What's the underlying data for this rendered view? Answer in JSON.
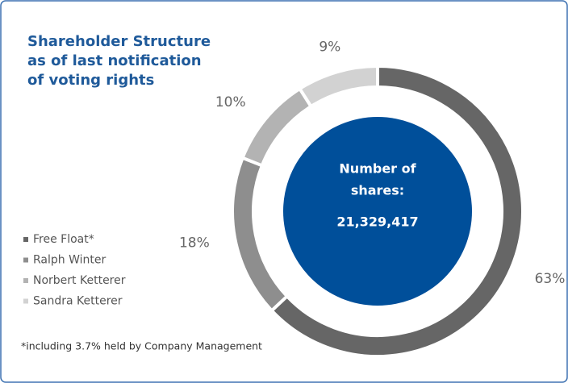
{
  "chart_data": {
    "type": "donut",
    "title": [
      "Shareholder Structure",
      "as of last notification",
      "of voting rights"
    ],
    "categories": [
      "Free Float*",
      "Ralph Winter",
      "Norbert Ketterer",
      "Sandra Ketterer"
    ],
    "values": [
      63,
      18,
      10,
      9
    ],
    "value_labels": [
      "63%",
      "18%",
      "10%",
      "9%"
    ],
    "colors": [
      "#666666",
      "#8e8e8e",
      "#b3b3b3",
      "#d2d2d2"
    ],
    "center_label": [
      "Number of",
      "shares:"
    ],
    "center_value": "21,329,417",
    "center_color": "#004f9a",
    "footnote": "*including 3.7% held by Company Management"
  }
}
